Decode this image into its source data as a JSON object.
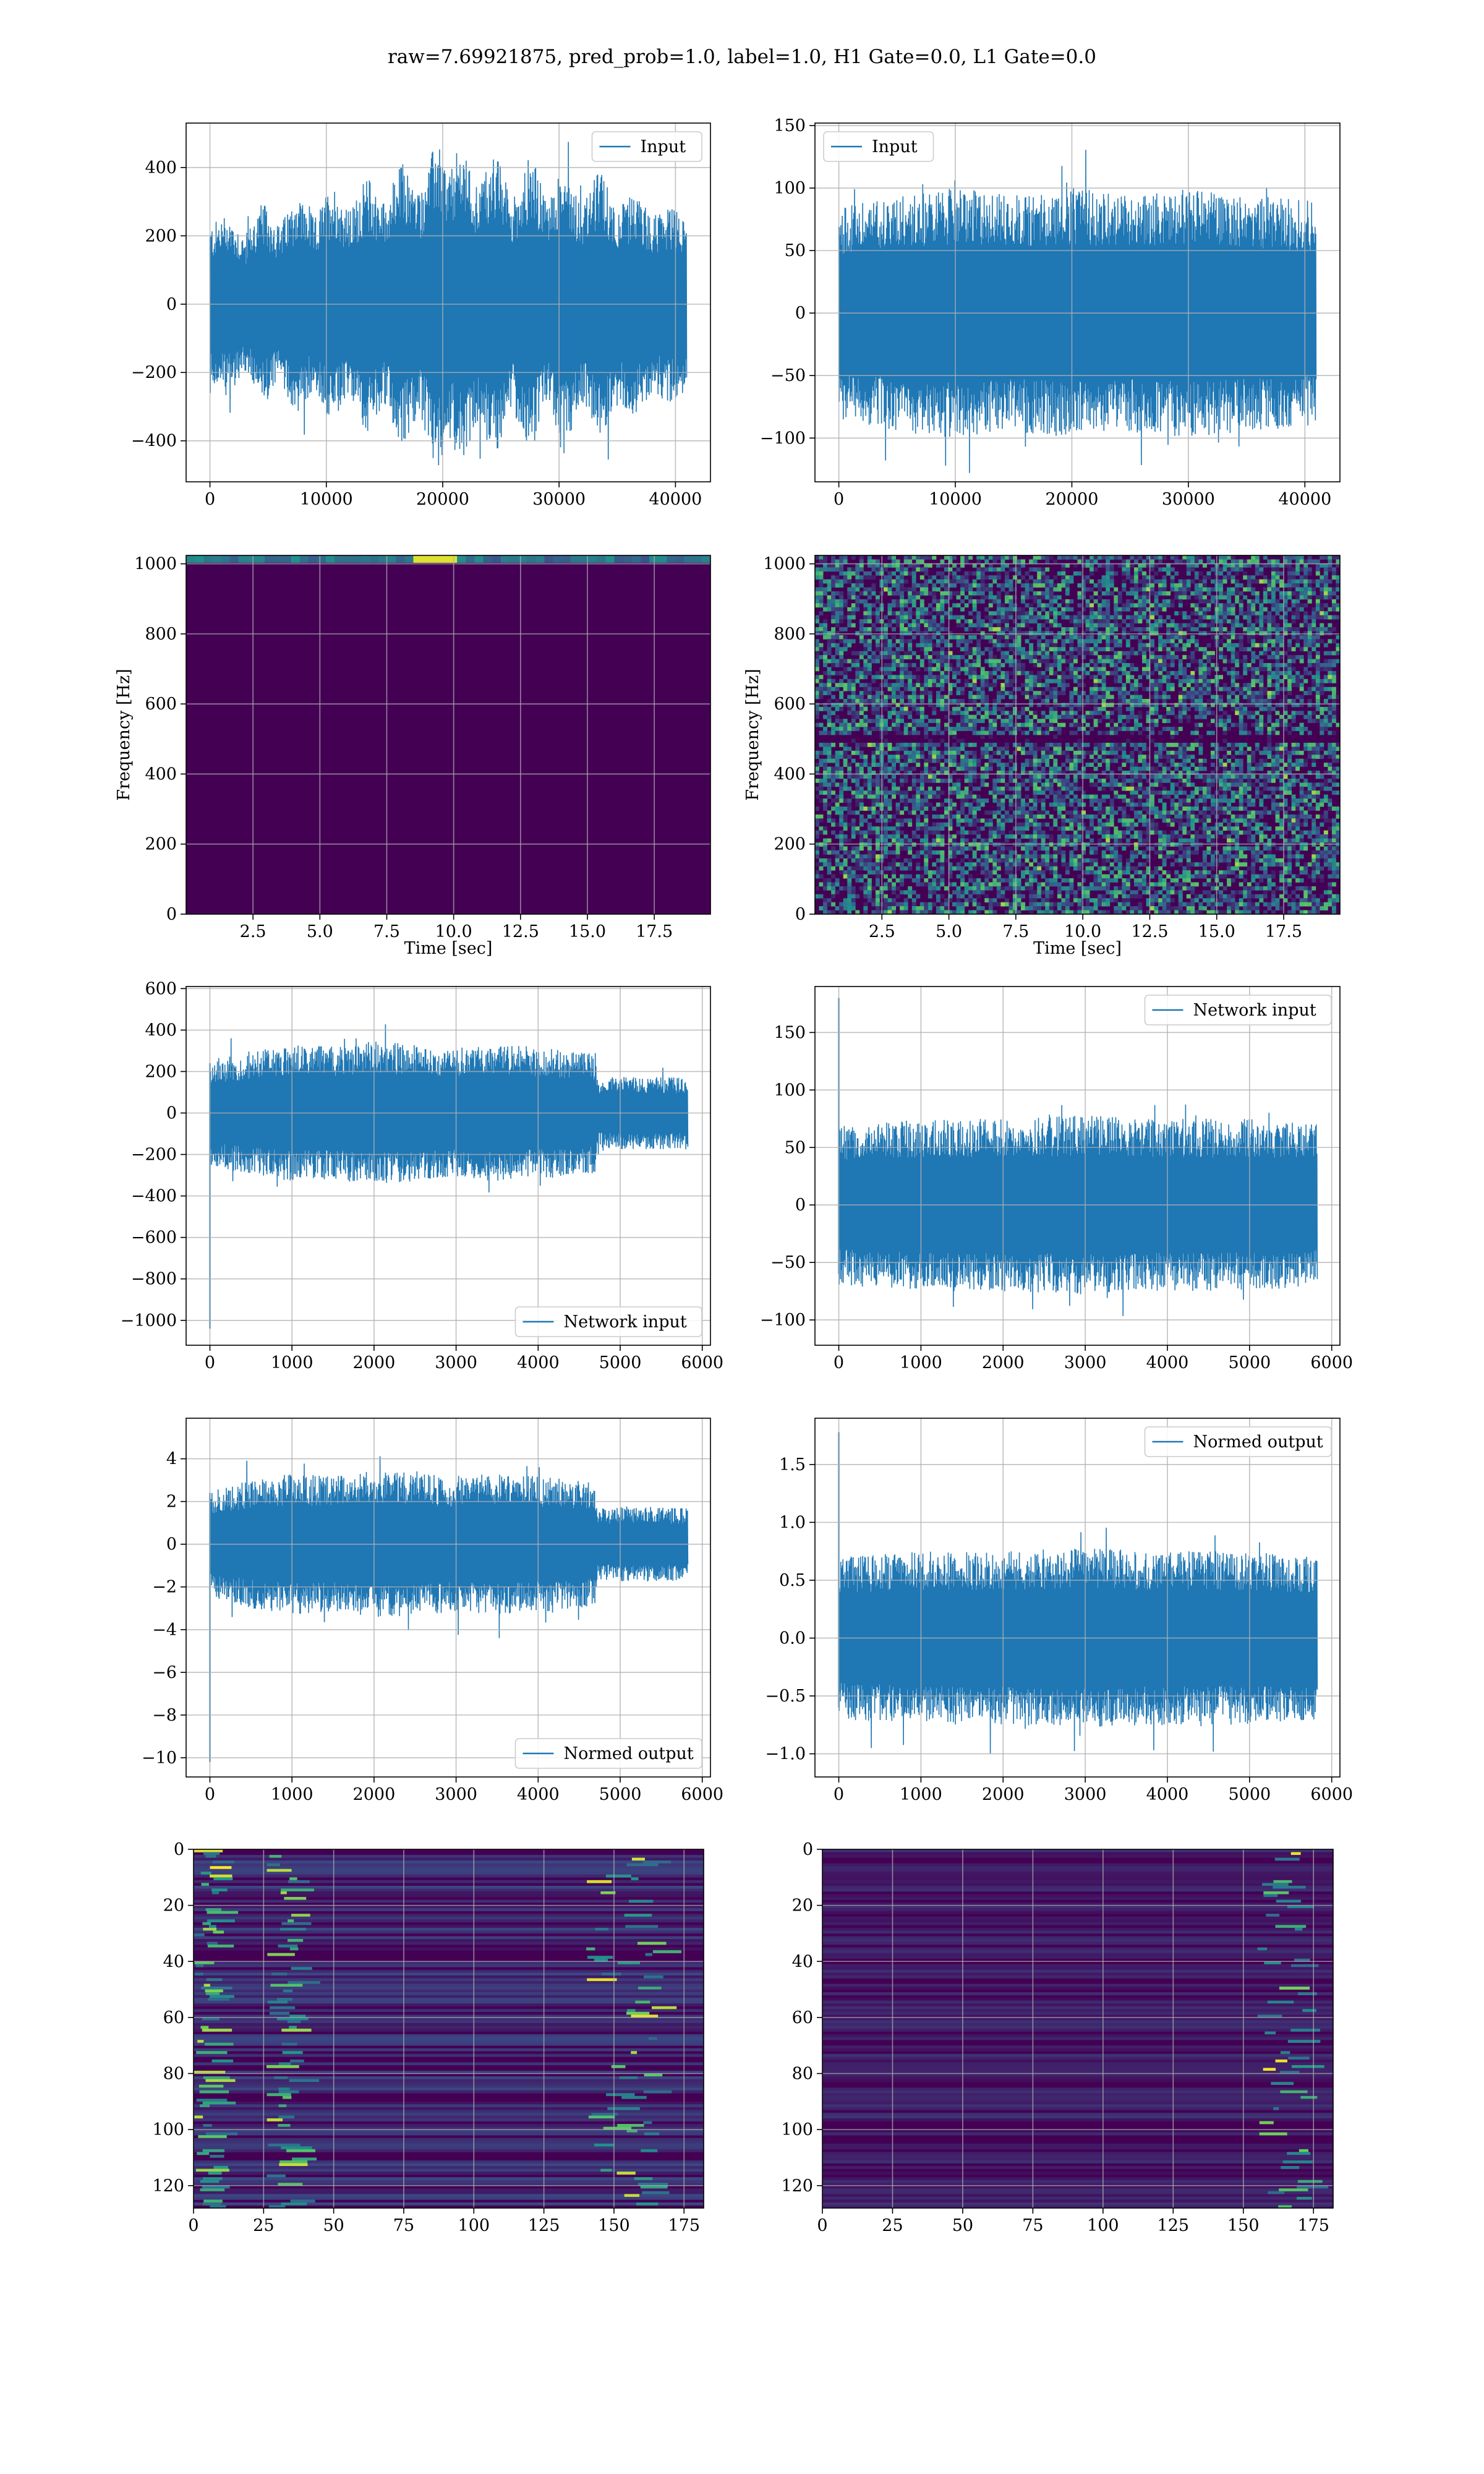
{
  "figure": {
    "suptitle": "raw=7.69921875, pred_prob=1.0, label=1.0, H1 Gate=0.0, L1 Gate=0.0"
  },
  "colors": {
    "line": "#1f77b4",
    "viridis_low": "#440154",
    "viridis_mid": "#21918c",
    "viridis_high": "#fde725",
    "grid": "#b0b0b0"
  },
  "chart_data": [
    {
      "id": "raw-input-h1",
      "type": "line",
      "legend": "Input",
      "legend_loc": "upper right",
      "xlim": [
        -2048,
        43008
      ],
      "ylim": [
        -520,
        530
      ],
      "xticks": [
        0,
        10000,
        20000,
        30000,
        40000
      ],
      "yticks": [
        -400,
        -200,
        0,
        200,
        400
      ],
      "xticklabels": [
        "0",
        "10000",
        "20000",
        "30000",
        "40000"
      ],
      "yticklabels": [
        "−400",
        "−200",
        "0",
        "200",
        "400"
      ],
      "xlabel": "",
      "ylabel": "",
      "grid": true,
      "x_range": [
        0,
        40960
      ],
      "envelope": [
        [
          0,
          230
        ],
        [
          1500,
          270
        ],
        [
          3000,
          200
        ],
        [
          4500,
          300
        ],
        [
          6000,
          230
        ],
        [
          7500,
          330
        ],
        [
          9000,
          250
        ],
        [
          10500,
          360
        ],
        [
          12000,
          270
        ],
        [
          13500,
          380
        ],
        [
          15000,
          300
        ],
        [
          16500,
          420
        ],
        [
          18000,
          330
        ],
        [
          19500,
          490
        ],
        [
          20500,
          380
        ],
        [
          21500,
          470
        ],
        [
          23000,
          350
        ],
        [
          24500,
          450
        ],
        [
          26000,
          310
        ],
        [
          27500,
          440
        ],
        [
          29000,
          300
        ],
        [
          30500,
          420
        ],
        [
          32000,
          290
        ],
        [
          33500,
          400
        ],
        [
          35000,
          280
        ],
        [
          36500,
          330
        ],
        [
          38000,
          260
        ],
        [
          39500,
          290
        ],
        [
          40960,
          250
        ]
      ],
      "series": [
        {
          "values_summary": "dense oscillating strain signal"
        }
      ]
    },
    {
      "id": "raw-input-l1",
      "type": "line",
      "legend": "Input",
      "legend_loc": "upper left",
      "xlim": [
        -2048,
        43008
      ],
      "ylim": [
        -135,
        152
      ],
      "xticks": [
        0,
        10000,
        20000,
        30000,
        40000
      ],
      "yticks": [
        -100,
        -50,
        0,
        50,
        100,
        150
      ],
      "xticklabels": [
        "0",
        "10000",
        "20000",
        "30000",
        "40000"
      ],
      "yticklabels": [
        "−100",
        "−50",
        "0",
        "50",
        "100",
        "150"
      ],
      "xlabel": "",
      "ylabel": "",
      "grid": true,
      "x_range": [
        0,
        40960
      ],
      "envelope": [
        [
          0,
          85
        ],
        [
          5000,
          95
        ],
        [
          10000,
          100
        ],
        [
          15000,
          95
        ],
        [
          20000,
          100
        ],
        [
          25000,
          95
        ],
        [
          30000,
          100
        ],
        [
          35000,
          95
        ],
        [
          40960,
          90
        ]
      ],
      "series": [
        {
          "values_summary": "stationary noise, peaks to ~145 near 17000 and 24000"
        }
      ]
    },
    {
      "id": "spectrogram-h1",
      "type": "heatmap",
      "xlim": [
        0,
        19.6
      ],
      "ylim": [
        0,
        1024
      ],
      "xticks": [
        2.5,
        5,
        7.5,
        10,
        12.5,
        15,
        17.5
      ],
      "yticks": [
        0,
        200,
        400,
        600,
        800,
        1000
      ],
      "xticklabels": [
        "2.5",
        "5.0",
        "7.5",
        "10.0",
        "12.5",
        "15.0",
        "17.5"
      ],
      "yticklabels": [
        "0",
        "200",
        "400",
        "600",
        "800",
        "1000"
      ],
      "xlabel": "Time [sec]",
      "ylabel": "Frequency [Hz]",
      "grid": true,
      "colormap": "viridis",
      "description": "uniform low power, bright band near 1024 Hz"
    },
    {
      "id": "spectrogram-l1",
      "type": "heatmap",
      "xlim": [
        0,
        19.6
      ],
      "ylim": [
        0,
        1024
      ],
      "xticks": [
        2.5,
        5,
        7.5,
        10,
        12.5,
        15,
        17.5
      ],
      "yticks": [
        0,
        200,
        400,
        600,
        800,
        1000
      ],
      "xticklabels": [
        "2.5",
        "5.0",
        "7.5",
        "10.0",
        "12.5",
        "15.0",
        "17.5"
      ],
      "yticklabels": [
        "0",
        "200",
        "400",
        "600",
        "800",
        "1000"
      ],
      "xlabel": "Time [sec]",
      "ylabel": "Frequency [Hz]",
      "grid": true,
      "colormap": "viridis",
      "description": "speckled noise with dark band near 500 Hz"
    },
    {
      "id": "network-input-h1",
      "type": "line",
      "legend": "Network input",
      "legend_loc": "lower right",
      "xlim": [
        -290,
        6100
      ],
      "ylim": [
        -1120,
        610
      ],
      "xticks": [
        0,
        1000,
        2000,
        3000,
        4000,
        5000,
        6000
      ],
      "yticks": [
        -1000,
        -800,
        -600,
        -400,
        -200,
        0,
        200,
        400,
        600
      ],
      "xticklabels": [
        "0",
        "1000",
        "2000",
        "3000",
        "4000",
        "5000",
        "6000"
      ],
      "yticklabels": [
        "−1000",
        "−800",
        "−600",
        "−400",
        "−200",
        "0",
        "200",
        "400",
        "600"
      ],
      "xlabel": "",
      "ylabel": "",
      "grid": true,
      "x_range": [
        0,
        5824
      ],
      "envelope": [
        [
          0,
          250
        ],
        [
          500,
          300
        ],
        [
          1000,
          330
        ],
        [
          1500,
          320
        ],
        [
          2000,
          350
        ],
        [
          2500,
          330
        ],
        [
          3000,
          320
        ],
        [
          3500,
          330
        ],
        [
          4000,
          320
        ],
        [
          4500,
          300
        ],
        [
          4700,
          290
        ],
        [
          4720,
          170
        ],
        [
          5200,
          180
        ],
        [
          5824,
          170
        ]
      ],
      "spike": {
        "x": 0,
        "low": -1040,
        "high": 240
      },
      "series": [
        {
          "values_summary": "whitened strain, amplitude drops after x≈4700"
        }
      ]
    },
    {
      "id": "network-input-l1",
      "type": "line",
      "legend": "Network input",
      "legend_loc": "upper right",
      "xlim": [
        -290,
        6100
      ],
      "ylim": [
        -122,
        190
      ],
      "xticks": [
        0,
        1000,
        2000,
        3000,
        4000,
        5000,
        6000
      ],
      "yticks": [
        -100,
        -50,
        0,
        50,
        100,
        150
      ],
      "xticklabels": [
        "0",
        "1000",
        "2000",
        "3000",
        "4000",
        "5000",
        "6000"
      ],
      "yticklabels": [
        "−100",
        "−50",
        "0",
        "50",
        "100",
        "150"
      ],
      "xlabel": "",
      "ylabel": "",
      "grid": true,
      "x_range": [
        0,
        5824
      ],
      "envelope": [
        [
          0,
          70
        ],
        [
          1000,
          75
        ],
        [
          2000,
          75
        ],
        [
          3000,
          78
        ],
        [
          4000,
          75
        ],
        [
          5000,
          75
        ],
        [
          5824,
          70
        ]
      ],
      "spike": {
        "x": 0,
        "low": -60,
        "high": 180
      },
      "series": [
        {
          "values_summary": "whitened noise, bump to ~130 near x≈5400"
        }
      ]
    },
    {
      "id": "normed-output-h1",
      "type": "line",
      "legend": "Normed output",
      "legend_loc": "lower right",
      "xlim": [
        -290,
        6100
      ],
      "ylim": [
        -10.9,
        5.9
      ],
      "xticks": [
        0,
        1000,
        2000,
        3000,
        4000,
        5000,
        6000
      ],
      "yticks": [
        -10,
        -8,
        -6,
        -4,
        -2,
        0,
        2,
        4
      ],
      "xticklabels": [
        "0",
        "1000",
        "2000",
        "3000",
        "4000",
        "5000",
        "6000"
      ],
      "yticklabels": [
        "−10",
        "−8",
        "−6",
        "−4",
        "−2",
        "0",
        "2",
        "4"
      ],
      "xlabel": "",
      "ylabel": "",
      "grid": true,
      "x_range": [
        0,
        5824
      ],
      "envelope": [
        [
          0,
          2.5
        ],
        [
          500,
          3.0
        ],
        [
          1000,
          3.3
        ],
        [
          1500,
          3.2
        ],
        [
          2000,
          3.5
        ],
        [
          2500,
          3.3
        ],
        [
          3000,
          3.2
        ],
        [
          3500,
          3.3
        ],
        [
          4000,
          3.2
        ],
        [
          4500,
          3.0
        ],
        [
          4700,
          2.9
        ],
        [
          4720,
          1.7
        ],
        [
          5200,
          1.8
        ],
        [
          5824,
          1.7
        ]
      ],
      "spike": {
        "x": 0,
        "low": -10.2,
        "high": 2.4
      },
      "series": [
        {
          "values_summary": "normalized whitened strain"
        }
      ]
    },
    {
      "id": "normed-output-l1",
      "type": "line",
      "legend": "Normed output",
      "legend_loc": "upper right",
      "xlim": [
        -290,
        6100
      ],
      "ylim": [
        -1.2,
        1.9
      ],
      "xticks": [
        0,
        1000,
        2000,
        3000,
        4000,
        5000,
        6000
      ],
      "yticks": [
        -1.0,
        -0.5,
        0.0,
        0.5,
        1.0,
        1.5
      ],
      "xticklabels": [
        "0",
        "1000",
        "2000",
        "3000",
        "4000",
        "5000",
        "6000"
      ],
      "yticklabels": [
        "−1.0",
        "−0.5",
        "0.0",
        "0.5",
        "1.0",
        "1.5"
      ],
      "xlabel": "",
      "ylabel": "",
      "grid": true,
      "x_range": [
        0,
        5824
      ],
      "envelope": [
        [
          0,
          0.7
        ],
        [
          1000,
          0.75
        ],
        [
          2000,
          0.75
        ],
        [
          3000,
          0.78
        ],
        [
          4000,
          0.75
        ],
        [
          5000,
          0.75
        ],
        [
          5824,
          0.7
        ]
      ],
      "spike": {
        "x": 0,
        "low": -0.6,
        "high": 1.78
      },
      "series": [
        {
          "values_summary": "normalized noise, bump to ~1.35 near x≈5400"
        }
      ]
    },
    {
      "id": "feature-map-h1",
      "type": "heatmap",
      "xlim": [
        0,
        182
      ],
      "ylim": [
        128,
        0
      ],
      "xticks": [
        0,
        25,
        50,
        75,
        100,
        125,
        150,
        175
      ],
      "yticks": [
        0,
        20,
        40,
        60,
        80,
        100,
        120
      ],
      "xticklabels": [
        "0",
        "25",
        "50",
        "75",
        "100",
        "125",
        "150",
        "175"
      ],
      "yticklabels": [
        "0",
        "20",
        "40",
        "60",
        "80",
        "100",
        "120"
      ],
      "xlabel": "",
      "ylabel": "",
      "grid": true,
      "colormap": "viridis",
      "description": "horizontal streaks, bright features near columns 0-10 and 30-40"
    },
    {
      "id": "feature-map-l1",
      "type": "heatmap",
      "xlim": [
        0,
        182
      ],
      "ylim": [
        128,
        0
      ],
      "xticks": [
        0,
        25,
        50,
        75,
        100,
        125,
        150,
        175
      ],
      "yticks": [
        0,
        20,
        40,
        60,
        80,
        100,
        120
      ],
      "xticklabels": [
        "0",
        "25",
        "50",
        "75",
        "100",
        "125",
        "150",
        "175"
      ],
      "yticklabels": [
        "0",
        "20",
        "40",
        "60",
        "80",
        "100",
        "120"
      ],
      "xlabel": "",
      "ylabel": "",
      "grid": true,
      "colormap": "viridis",
      "description": "dark streaks, bright features near columns 165-180"
    }
  ]
}
